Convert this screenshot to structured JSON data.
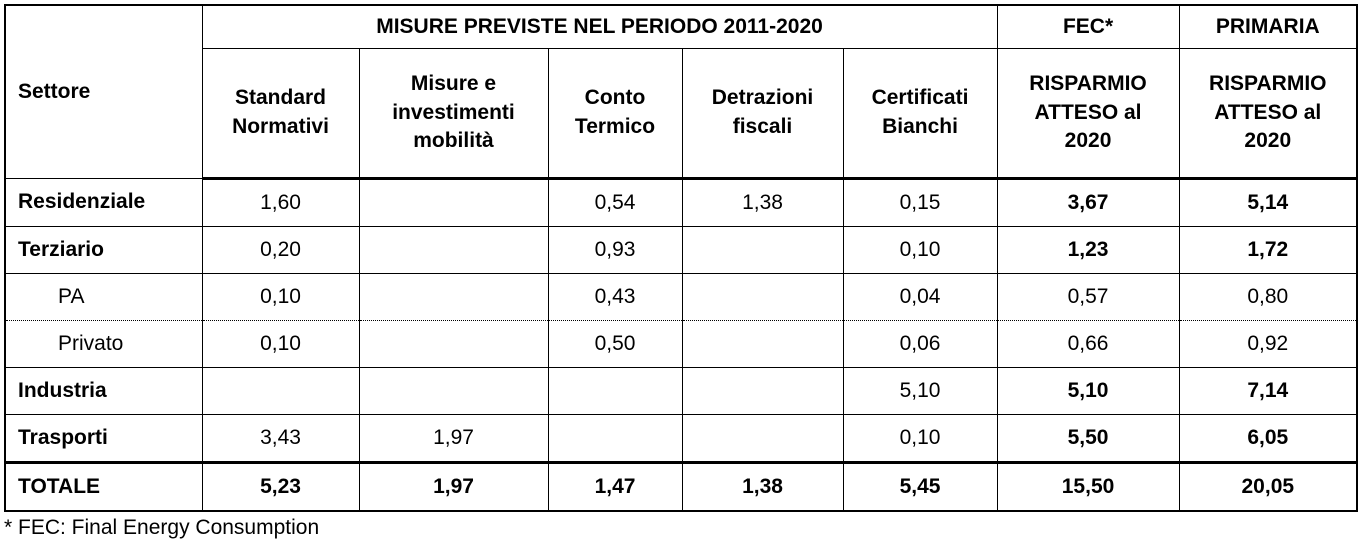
{
  "table": {
    "header_top": {
      "sector": "Settore",
      "measures": "MISURE PREVISTE NEL PERIODO 2011-2020",
      "fec": "FEC*",
      "primary": "PRIMARIA"
    },
    "header_sub": [
      "Standard Normativi",
      "Misure e investimenti mobilità",
      "Conto Termico",
      "Detrazioni fiscali",
      "Certificati Bianchi",
      "RISPARMIO ATTESO al 2020",
      "RISPARMIO ATTESO al 2020"
    ],
    "rows": [
      {
        "label": "Residenziale",
        "cells": [
          "1,60",
          null,
          "0,54",
          "1,38",
          "0,15",
          "3,67",
          "5,14"
        ]
      },
      {
        "label": "Terziario",
        "cells": [
          "0,20",
          null,
          "0,93",
          null,
          "0,10",
          "1,23",
          "1,72"
        ]
      },
      {
        "label": "PA",
        "cells": [
          "0,10",
          null,
          "0,43",
          null,
          "0,04",
          "0,57",
          "0,80"
        ]
      },
      {
        "label": "Privato",
        "cells": [
          "0,10",
          null,
          "0,50",
          null,
          "0,06",
          "0,66",
          "0,92"
        ]
      },
      {
        "label": "Industria",
        "cells": [
          null,
          null,
          null,
          null,
          "5,10",
          "5,10",
          "7,14"
        ]
      },
      {
        "label": "Trasporti",
        "cells": [
          "3,43",
          "1,97",
          null,
          null,
          "0,10",
          "5,50",
          "6,05"
        ]
      },
      {
        "label": "TOTALE",
        "cells": [
          "5,23",
          "1,97",
          "1,47",
          "1,38",
          "5,45",
          "15,50",
          "20,05"
        ]
      }
    ]
  },
  "footnote": "* FEC: Final Energy Consumption"
}
